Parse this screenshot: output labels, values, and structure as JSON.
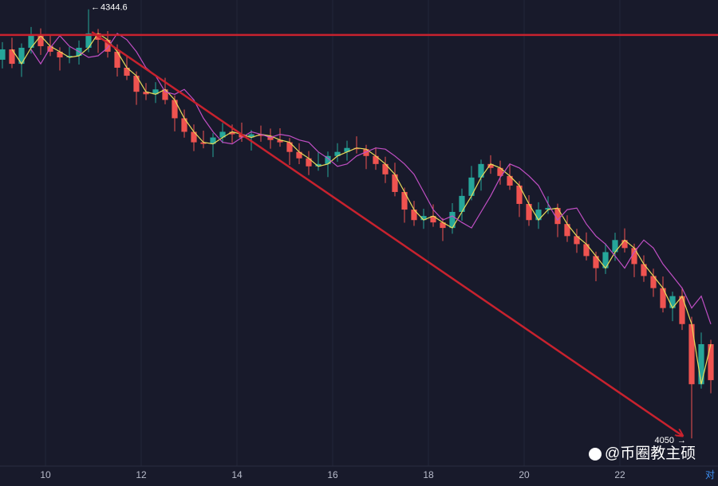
{
  "chart_data": {
    "type": "candlestick",
    "x": [
      9.1,
      9.3,
      9.5,
      9.7,
      9.9,
      10.1,
      10.3,
      10.5,
      10.7,
      10.9,
      11.1,
      11.3,
      11.5,
      11.7,
      11.9,
      12.1,
      12.3,
      12.5,
      12.7,
      12.9,
      13.1,
      13.3,
      13.5,
      13.7,
      13.9,
      14.1,
      14.3,
      14.5,
      14.7,
      14.9,
      15.1,
      15.3,
      15.5,
      15.7,
      15.9,
      16.1,
      16.3,
      16.5,
      16.7,
      16.9,
      17.1,
      17.3,
      17.5,
      17.7,
      17.9,
      18.1,
      18.3,
      18.5,
      18.7,
      18.9,
      19.1,
      19.3,
      19.5,
      19.7,
      19.9,
      20.1,
      20.3,
      20.5,
      20.7,
      20.9,
      21.1,
      21.3,
      21.5,
      21.7,
      21.9,
      22.1,
      22.3,
      22.5,
      22.7,
      22.9,
      23.1,
      23.3,
      23.5,
      23.7,
      23.9
    ],
    "candles": {
      "open": [
        4310.0,
        4317.1,
        4307.2,
        4318.2,
        4326.5,
        4319.3,
        4315.5,
        4311.6,
        4312.7,
        4318.2,
        4328.1,
        4323.7,
        4315.5,
        4304.5,
        4299.0,
        4288.0,
        4286.3,
        4289.6,
        4282.4,
        4269.8,
        4260.5,
        4253.3,
        4252.2,
        4256.6,
        4260.5,
        4258.8,
        4256.6,
        4258.8,
        4257.7,
        4254.9,
        4253.3,
        4246.7,
        4242.3,
        4236.8,
        4238.4,
        4243.9,
        4246.7,
        4249.4,
        4248.6,
        4243.9,
        4238.4,
        4231.3,
        4219.2,
        4207.1,
        4199.9,
        4202.7,
        4198.3,
        4194.5,
        4205.5,
        4216.5,
        4229.1,
        4238.4,
        4235.7,
        4230.2,
        4223.6,
        4211.0,
        4199.9,
        4207.1,
        4208.2,
        4197.2,
        4188.9,
        4183.4,
        4175.2,
        4166.9,
        4177.9,
        4186.2,
        4180.7,
        4169.7,
        4161.5,
        4153.2,
        4139.5,
        4147.7,
        4128.5,
        4087.2,
        4114.7
      ],
      "high": [
        4322.1,
        4325.1,
        4321.2,
        4332.5,
        4331.5,
        4327.3,
        4318.5,
        4318.7,
        4323.2,
        4344.6,
        4331.1,
        4329.7,
        4320.5,
        4312.5,
        4302.0,
        4294.0,
        4294.6,
        4297.6,
        4285.4,
        4275.8,
        4265.5,
        4261.3,
        4259.6,
        4266.5,
        4265.5,
        4266.8,
        4261.8,
        4264.8,
        4262.7,
        4262.9,
        4256.3,
        4252.7,
        4247.3,
        4246.4,
        4246.9,
        4252.7,
        4254.4,
        4257.4,
        4251.6,
        4249.9,
        4243.4,
        4239.3,
        4222.2,
        4213.1,
        4207.7,
        4210.7,
        4201.3,
        4211.5,
        4221.5,
        4237.1,
        4241.4,
        4244.4,
        4240.7,
        4238.2,
        4226.6,
        4217.0,
        4212.1,
        4216.2,
        4211.2,
        4203.2,
        4193.9,
        4191.4,
        4178.2,
        4183.9,
        4191.2,
        4194.2,
        4183.7,
        4175.7,
        4166.5,
        4161.2,
        4150.7,
        4153.7,
        4133.5,
        4122.7,
        4117.7
      ],
      "low": [
        4304.0,
        4304.2,
        4298.2,
        4314.2,
        4313.3,
        4312.5,
        4302.6,
        4307.6,
        4306.7,
        4315.2,
        4314.7,
        4311.5,
        4298.5,
        4296.0,
        4279.0,
        4282.3,
        4280.3,
        4279.4,
        4260.8,
        4256.5,
        4247.3,
        4249.2,
        4243.2,
        4252.6,
        4252.8,
        4253.6,
        4247.6,
        4253.7,
        4248.9,
        4250.3,
        4237.7,
        4238.3,
        4230.8,
        4233.8,
        4229.4,
        4239.9,
        4240.7,
        4245.6,
        4234.9,
        4234.4,
        4225.3,
        4216.2,
        4198.1,
        4195.9,
        4193.9,
        4195.3,
        4185.5,
        4190.5,
        4199.5,
        4213.5,
        4220.1,
        4231.7,
        4224.2,
        4220.6,
        4202.0,
        4195.9,
        4193.9,
        4204.1,
        4188.2,
        4184.9,
        4177.4,
        4172.2,
        4157.9,
        4162.9,
        4171.9,
        4177.7,
        4160.7,
        4157.5,
        4147.2,
        4136.5,
        4130.5,
        4124.5,
        4050,
        4084.2,
        4081.0
      ],
      "close": [
        4317.1,
        4307.2,
        4318.2,
        4326.5,
        4319.3,
        4315.5,
        4311.6,
        4312.7,
        4318.2,
        4328.1,
        4323.7,
        4315.5,
        4304.5,
        4299.0,
        4288.0,
        4286.3,
        4289.6,
        4282.4,
        4269.8,
        4260.5,
        4253.3,
        4252.2,
        4256.6,
        4260.5,
        4258.8,
        4256.6,
        4258.8,
        4257.7,
        4254.9,
        4253.3,
        4246.7,
        4242.3,
        4236.8,
        4238.4,
        4243.9,
        4246.7,
        4249.4,
        4248.6,
        4243.9,
        4238.4,
        4231.3,
        4219.2,
        4207.1,
        4199.9,
        4202.7,
        4198.3,
        4194.5,
        4205.5,
        4216.5,
        4229.1,
        4238.4,
        4235.7,
        4230.2,
        4223.6,
        4211.0,
        4199.9,
        4207.1,
        4208.2,
        4197.2,
        4188.9,
        4183.4,
        4175.2,
        4166.9,
        4177.9,
        4186.2,
        4180.7,
        4169.7,
        4161.5,
        4153.2,
        4139.5,
        4147.7,
        4128.5,
        4087.2,
        4114.7,
        4090.0
      ],
      "up_color": "#26a69a",
      "down_color": "#ef5350"
    },
    "lines": [
      {
        "color": "#e8dc5a",
        "values": [
          null,
          4317.1,
          4307.2,
          4318.2,
          4326.5,
          4319.3,
          4315.5,
          4311.6,
          4312.7,
          4318.2,
          4328.1,
          4323.7,
          4315.5,
          4304.5,
          4299.0,
          4288.0,
          4286.3,
          4289.6,
          4282.4,
          4269.8,
          4260.5,
          4253.3,
          4252.2,
          4256.6,
          4260.5,
          4258.8,
          4256.6,
          4258.8,
          4257.7,
          4254.9,
          4253.3,
          4246.7,
          4242.3,
          4236.8,
          4238.4,
          4243.9,
          4246.7,
          4249.4,
          4248.6,
          4243.9,
          4238.4,
          4231.3,
          4219.2,
          4207.1,
          4199.9,
          4202.7,
          4198.3,
          4194.5,
          4205.5,
          4216.5,
          4229.1,
          4238.4,
          4235.7,
          4230.2,
          4223.6,
          4211.0,
          4199.9,
          4207.1,
          4208.2,
          4197.2,
          4188.9,
          4183.4,
          4175.2,
          4166.9,
          4177.9,
          4186.2,
          4180.7,
          4169.7,
          4161.5,
          4153.2,
          4139.5,
          4147.7,
          4128.5,
          4087.2,
          4114.7
        ]
      },
      {
        "color": "#c04fc4",
        "values": [
          null,
          null,
          null,
          4317.1,
          4307.2,
          4318.2,
          4326.5,
          4319.3,
          4315.5,
          4311.6,
          4312.7,
          4318.2,
          4328.1,
          4323.7,
          4315.5,
          4304.5,
          4299.0,
          4288.0,
          4286.3,
          4289.6,
          4282.4,
          4269.8,
          4260.5,
          4253.3,
          4252.2,
          4256.6,
          4260.5,
          4258.8,
          4256.6,
          4258.8,
          4257.7,
          4254.9,
          4253.3,
          4246.7,
          4242.3,
          4236.8,
          4238.4,
          4243.9,
          4246.7,
          4249.4,
          4248.6,
          4243.9,
          4238.4,
          4231.3,
          4219.2,
          4207.1,
          4199.9,
          4202.7,
          4198.3,
          4194.5,
          4205.5,
          4216.5,
          4229.1,
          4238.4,
          4235.7,
          4230.2,
          4223.6,
          4211.0,
          4199.9,
          4207.1,
          4208.2,
          4197.2,
          4188.9,
          4183.4,
          4175.2,
          4166.9,
          4177.9,
          4186.2,
          4180.7,
          4169.7,
          4161.5,
          4153.2,
          4139.5,
          4147.7,
          4128.5
        ]
      }
    ],
    "shapes": {
      "color": "#c8222e",
      "hline": 4327,
      "arrow": {
        "x": [
          10.97,
          23.3
        ],
        "y": [
          4329,
          4052
        ]
      }
    },
    "annotations": [
      {
        "x": 10.9,
        "value": 4344.6
      },
      {
        "x": 23.5,
        "value": 4050
      }
    ],
    "xlim": [
      9.05,
      24.05
    ],
    "ylim": [
      4031,
      4351
    ],
    "xticks": [
      10,
      12,
      14,
      16,
      18,
      20,
      22
    ],
    "grid": true,
    "watermark": "@币圈教主硕",
    "corner_label": "对"
  }
}
